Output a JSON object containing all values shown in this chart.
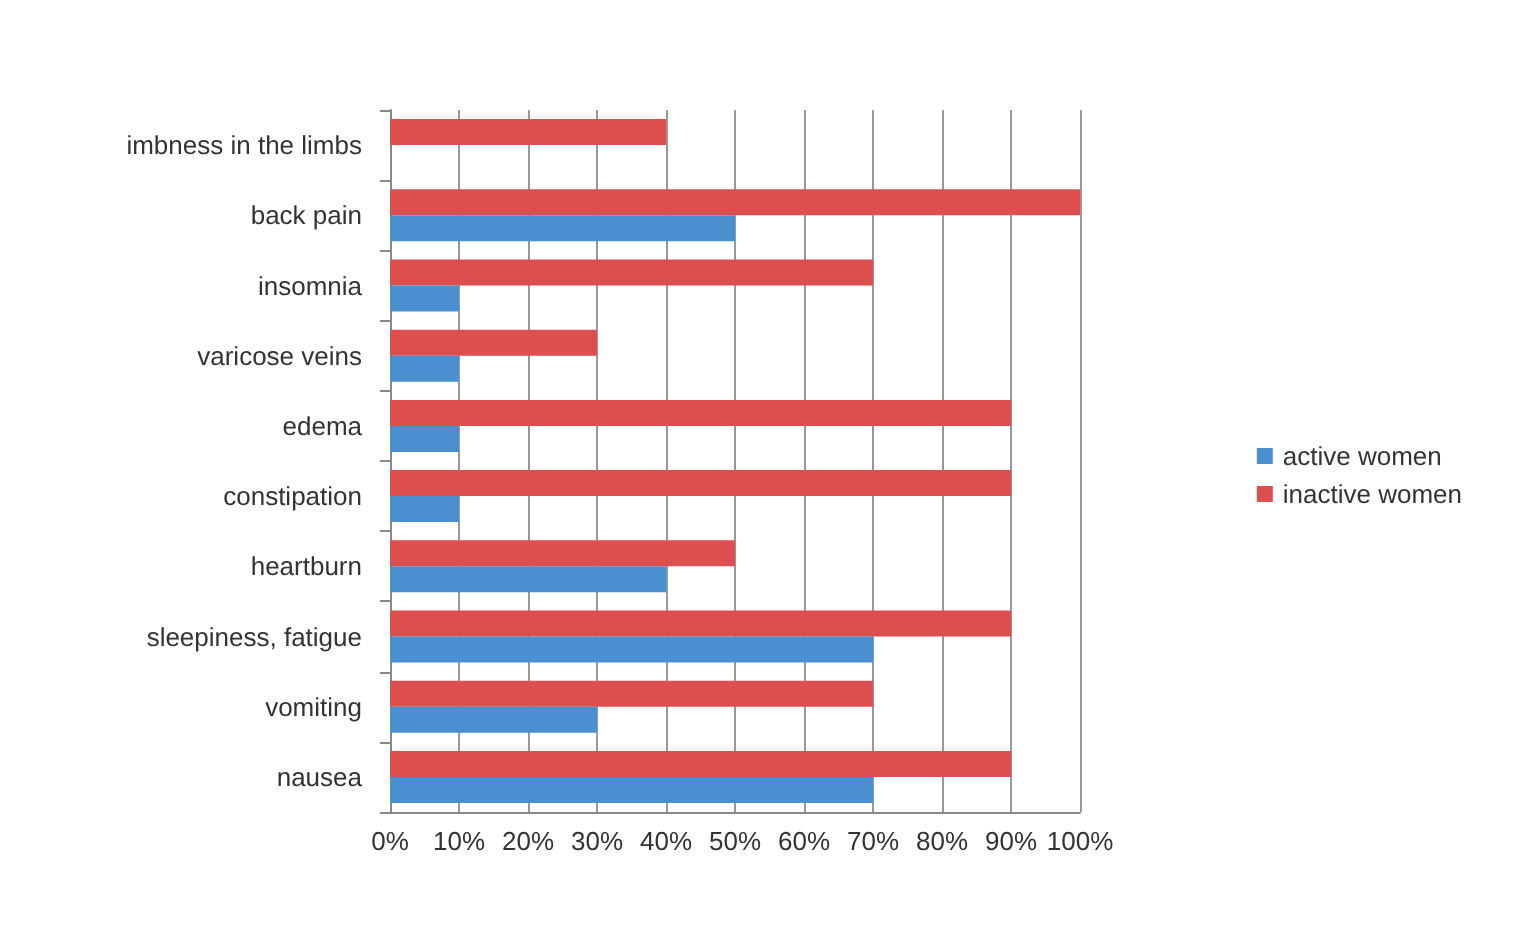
{
  "chart_data": {
    "type": "bar",
    "orientation": "horizontal",
    "categories": [
      "imbness in the limbs",
      "back pain",
      "insomnia",
      "varicose veins",
      "edema",
      "constipation",
      "heartburn",
      "sleepiness, fatigue",
      "vomiting",
      "nausea"
    ],
    "series": [
      {
        "name": "active women",
        "color": "#4a8fd0",
        "values": [
          null,
          50,
          10,
          10,
          10,
          10,
          40,
          70,
          30,
          70
        ]
      },
      {
        "name": "inactive women",
        "color": "#dd4f4f",
        "values": [
          40,
          100,
          70,
          30,
          90,
          90,
          50,
          90,
          70,
          90
        ]
      }
    ],
    "xlim": [
      0,
      100
    ],
    "xticks": [
      {
        "value": 0,
        "label": "0%"
      },
      {
        "value": 10,
        "label": "10%"
      },
      {
        "value": 20,
        "label": "20%"
      },
      {
        "value": 30,
        "label": "30%"
      },
      {
        "value": 40,
        "label": "40%"
      },
      {
        "value": 50,
        "label": "50%"
      },
      {
        "value": 60,
        "label": "60%"
      },
      {
        "value": 70,
        "label": "70%"
      },
      {
        "value": 80,
        "label": "80%"
      },
      {
        "value": 90,
        "label": "90%"
      },
      {
        "value": 100,
        "label": "100%"
      }
    ],
    "grid": "x",
    "legend": "right"
  }
}
